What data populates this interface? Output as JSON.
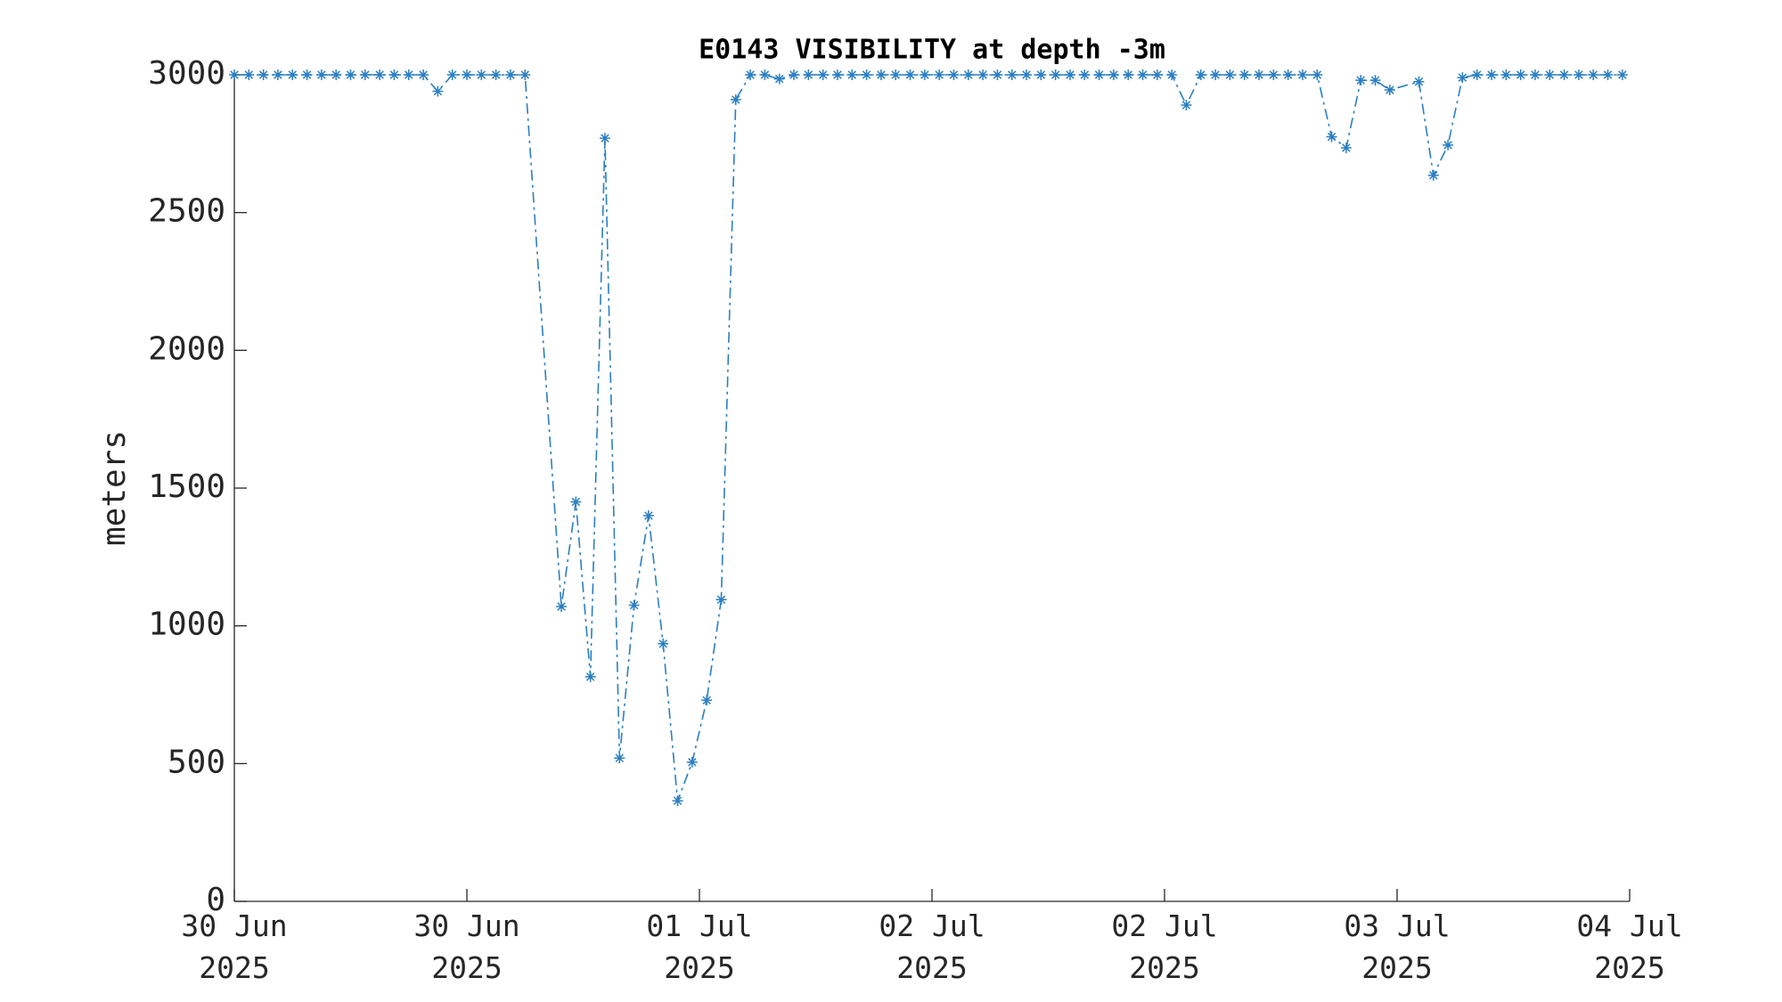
{
  "chart_data": {
    "type": "line",
    "title": "E0143 VISIBILITY at depth -3m",
    "ylabel": "meters",
    "x": [
      0,
      1,
      2,
      3,
      4,
      5,
      6,
      7,
      8,
      9,
      10,
      11,
      12,
      13,
      14,
      15,
      16,
      17,
      18,
      19,
      20,
      22.5,
      23.5,
      24.5,
      25.5,
      26.5,
      27.5,
      28.5,
      29.5,
      30.5,
      31.5,
      32.5,
      33.5,
      34.5,
      35.5,
      36.5,
      37.5,
      38.5,
      39.5,
      40.5,
      41.5,
      42.5,
      43.5,
      44.5,
      45.5,
      46.5,
      47.5,
      48.5,
      49.5,
      50.5,
      51.5,
      52.5,
      53.5,
      54.5,
      55.5,
      56.5,
      57.5,
      58.5,
      59.5,
      60.5,
      61.5,
      62.5,
      63.5,
      64.5,
      65.5,
      66.5,
      67.5,
      68.5,
      69.5,
      70.5,
      71.5,
      72.5,
      73.5,
      74.5,
      75.5,
      76.5,
      77.5,
      78.5,
      79.5,
      81.5,
      82.5,
      83.5,
      84.5,
      85.5,
      86.5,
      87.5,
      88.5,
      89.5,
      90.5,
      91.5,
      92.5,
      93.5,
      94.5,
      95.5
    ],
    "series": [
      {
        "name": "visibility",
        "color": "#2b7fc1",
        "values": [
          3000,
          3000,
          3000,
          3000,
          3000,
          3000,
          3000,
          3000,
          3000,
          3000,
          3000,
          3000,
          3000,
          3000,
          2940,
          3000,
          3000,
          3000,
          3000,
          3000,
          3000,
          1070,
          1450,
          815,
          2770,
          520,
          1075,
          1400,
          935,
          365,
          505,
          730,
          1095,
          2910,
          3000,
          3000,
          2985,
          3000,
          3000,
          3000,
          3000,
          3000,
          3000,
          3000,
          3000,
          3000,
          3000,
          3000,
          3000,
          3000,
          3000,
          3000,
          3000,
          3000,
          3000,
          3000,
          3000,
          3000,
          3000,
          3000,
          3000,
          3000,
          3000,
          3000,
          2890,
          3000,
          3000,
          3000,
          3000,
          3000,
          3000,
          3000,
          3000,
          3000,
          2775,
          2735,
          2980,
          2980,
          2945,
          2975,
          2635,
          2745,
          2990,
          3000,
          3000,
          3000,
          3000,
          3000,
          3000,
          3000,
          3000,
          3000,
          3000,
          3000
        ]
      }
    ],
    "xlim": [
      0,
      96
    ],
    "xticks": [
      {
        "value": 0,
        "label": "30 Jun\n2025"
      },
      {
        "value": 16,
        "label": "30 Jun\n2025"
      },
      {
        "value": 32,
        "label": "01 Jul\n2025"
      },
      {
        "value": 48,
        "label": "02 Jul\n2025"
      },
      {
        "value": 64,
        "label": "02 Jul\n2025"
      },
      {
        "value": 80,
        "label": "03 Jul\n2025"
      },
      {
        "value": 96,
        "label": "04 Jul\n2025"
      }
    ],
    "ylim": [
      0,
      3000
    ],
    "yticks": [
      0,
      500,
      1000,
      1500,
      2000,
      2500,
      3000
    ]
  }
}
